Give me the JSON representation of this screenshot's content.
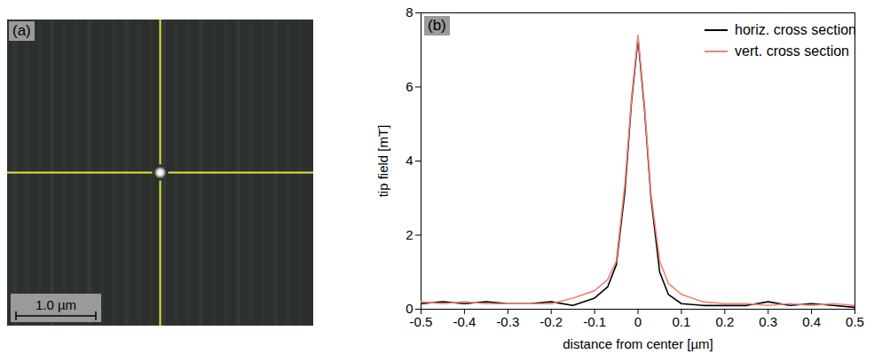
{
  "image_panel": {
    "panel_label": "(a)",
    "scale_bar": "1.0 µm"
  },
  "chart_data": {
    "type": "line",
    "panel_label": "(b)",
    "x_label": "distance from center [µm]",
    "y_label": "tip field [mT]",
    "x": [
      -0.5,
      -0.45,
      -0.4,
      -0.35,
      -0.3,
      -0.25,
      -0.2,
      -0.15,
      -0.1,
      -0.07,
      -0.05,
      -0.03,
      -0.015,
      0,
      0.015,
      0.03,
      0.05,
      0.07,
      0.1,
      0.15,
      0.2,
      0.25,
      0.3,
      0.35,
      0.4,
      0.45,
      0.5
    ],
    "series": [
      {
        "name": "horiz. cross section",
        "color": "#000000",
        "values": [
          0.15,
          0.2,
          0.15,
          0.2,
          0.15,
          0.15,
          0.2,
          0.1,
          0.3,
          0.6,
          1.2,
          3.2,
          5.6,
          7.3,
          5.4,
          3.0,
          1.0,
          0.4,
          0.15,
          0.1,
          0.1,
          0.1,
          0.2,
          0.1,
          0.15,
          0.1,
          0.05
        ]
      },
      {
        "name": "vert. cross section",
        "color": "#f08378",
        "values": [
          0.2,
          0.15,
          0.2,
          0.15,
          0.15,
          0.15,
          0.15,
          0.3,
          0.5,
          0.8,
          1.3,
          3.4,
          5.7,
          7.4,
          5.5,
          3.1,
          1.3,
          0.7,
          0.4,
          0.2,
          0.15,
          0.15,
          0.1,
          0.15,
          0.1,
          0.15,
          0.1
        ]
      }
    ],
    "xlim": [
      -0.5,
      0.5
    ],
    "xticks": [
      -0.5,
      -0.4,
      -0.3,
      -0.2,
      -0.1,
      0,
      0.1,
      0.2,
      0.3,
      0.4,
      0.5
    ],
    "ylim": [
      0,
      8
    ],
    "yticks": [
      0,
      2,
      4,
      6,
      8
    ],
    "legend": "top-right",
    "grid": false
  }
}
